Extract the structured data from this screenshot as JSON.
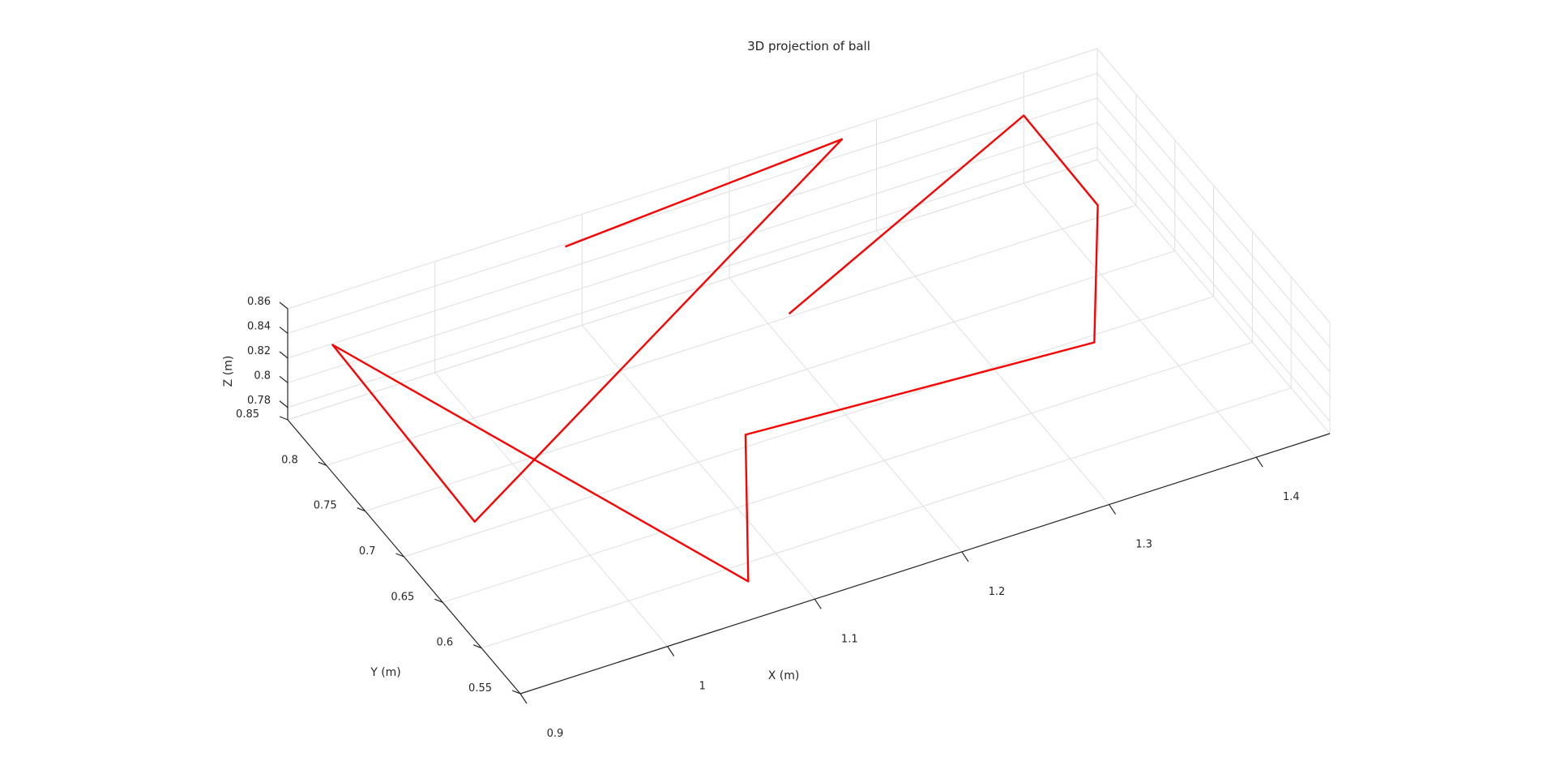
{
  "chart_data": {
    "type": "line",
    "title": "3D projection of ball",
    "xlabel": "X (m)",
    "ylabel": "Y (m)",
    "zlabel": "Z (m)",
    "xlim": [
      0.9,
      1.45
    ],
    "ylim": [
      0.55,
      0.85
    ],
    "zlim": [
      0.77,
      0.86
    ],
    "xticks": [
      0.9,
      1.0,
      1.1,
      1.2,
      1.3,
      1.4
    ],
    "yticks": [
      0.55,
      0.6,
      0.65,
      0.7,
      0.75,
      0.8,
      0.85
    ],
    "zticks": [
      0.78,
      0.8,
      0.82,
      0.84,
      0.86
    ],
    "grid": true,
    "series": [
      {
        "color": "#ff0000",
        "points": [
          [
            1.088,
            0.849,
            0.839
          ],
          [
            1.276,
            0.849,
            0.854
          ],
          [
            0.948,
            0.7,
            0.78
          ],
          [
            0.93,
            0.849,
            0.82
          ],
          [
            1.067,
            0.573,
            0.78
          ],
          [
            1.132,
            0.7,
            0.78
          ],
          [
            1.36,
            0.683,
            0.78
          ],
          [
            1.424,
            0.8,
            0.78
          ],
          [
            1.4,
            0.85,
            0.825
          ],
          [
            1.21,
            0.792,
            0.78
          ]
        ]
      }
    ]
  }
}
